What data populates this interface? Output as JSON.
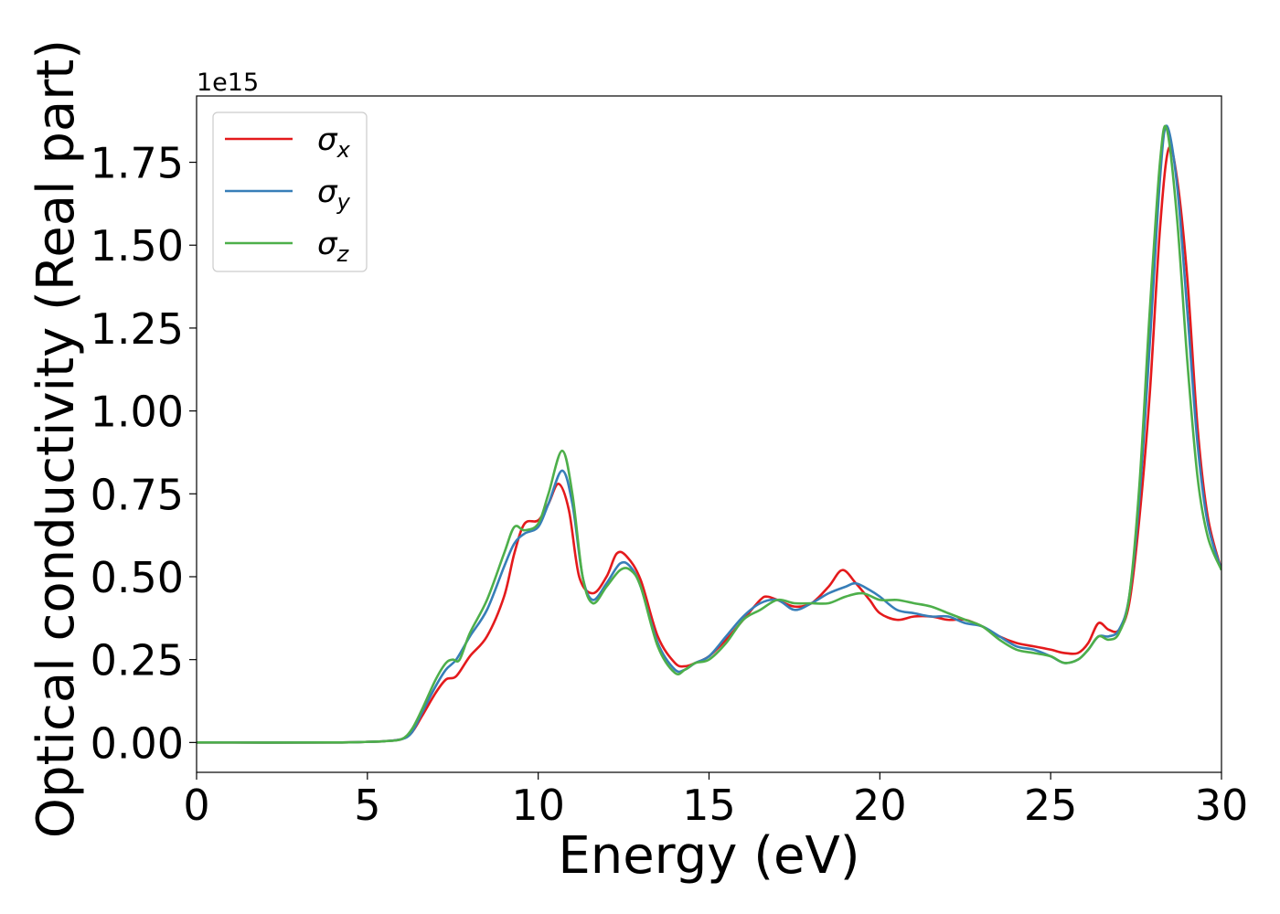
{
  "chart_data": {
    "type": "line",
    "xlabel": "Energy (eV)",
    "ylabel": "Optical conductivity (Real part)",
    "y_offset_label": "1e15",
    "xlim": [
      0,
      30
    ],
    "ylim": [
      -0.09,
      1.95
    ],
    "xticks": [
      0,
      5,
      10,
      15,
      20,
      25,
      30
    ],
    "xtick_labels": [
      "0",
      "5",
      "10",
      "15",
      "20",
      "25",
      "30"
    ],
    "yticks": [
      0.0,
      0.25,
      0.5,
      0.75,
      1.0,
      1.25,
      1.5,
      1.75
    ],
    "ytick_labels": [
      "0.00",
      "0.25",
      "0.50",
      "0.75",
      "1.00",
      "1.25",
      "1.50",
      "1.75"
    ],
    "grid": false,
    "legend_position": "top-left",
    "series": [
      {
        "name": "σ_x",
        "symbol": "σ",
        "subscript": "x",
        "color": "#e41a1c",
        "x": [
          0,
          4,
          5,
          5.5,
          6,
          6.3,
          6.6,
          7,
          7.3,
          7.6,
          8,
          8.5,
          9,
          9.3,
          9.6,
          10,
          10.3,
          10.6,
          10.9,
          11.2,
          11.6,
          12,
          12.3,
          12.6,
          13,
          13.5,
          14,
          14.3,
          14.6,
          15,
          15.5,
          16,
          16.5,
          16.7,
          17,
          17.5,
          18,
          18.5,
          18.9,
          19.3,
          19.7,
          20,
          20.5,
          21,
          21.5,
          22,
          22.5,
          23,
          23.5,
          24,
          24.5,
          25,
          25.4,
          25.8,
          26.1,
          26.4,
          26.7,
          27,
          27.3,
          27.6,
          27.9,
          28.2,
          28.45,
          28.7,
          29,
          29.3,
          29.6,
          30
        ],
        "values": [
          0.0,
          0.0,
          0.002,
          0.004,
          0.01,
          0.03,
          0.08,
          0.15,
          0.19,
          0.2,
          0.26,
          0.32,
          0.44,
          0.57,
          0.66,
          0.67,
          0.72,
          0.78,
          0.7,
          0.5,
          0.45,
          0.5,
          0.57,
          0.56,
          0.49,
          0.32,
          0.24,
          0.23,
          0.24,
          0.26,
          0.31,
          0.37,
          0.43,
          0.44,
          0.43,
          0.41,
          0.42,
          0.47,
          0.52,
          0.48,
          0.43,
          0.39,
          0.37,
          0.38,
          0.38,
          0.37,
          0.37,
          0.35,
          0.32,
          0.3,
          0.29,
          0.28,
          0.27,
          0.27,
          0.3,
          0.36,
          0.34,
          0.34,
          0.42,
          0.68,
          1.05,
          1.55,
          1.79,
          1.7,
          1.4,
          0.95,
          0.68,
          0.52
        ]
      },
      {
        "name": "σ_y",
        "symbol": "σ",
        "subscript": "y",
        "color": "#377eb8",
        "x": [
          0,
          4,
          5,
          5.5,
          6,
          6.3,
          6.6,
          7,
          7.3,
          7.6,
          8,
          8.5,
          9,
          9.3,
          9.6,
          10,
          10.3,
          10.7,
          11,
          11.3,
          11.6,
          12,
          12.4,
          12.7,
          13,
          13.5,
          14,
          14.3,
          14.6,
          15,
          15.5,
          16,
          16.5,
          17,
          17.5,
          18,
          18.5,
          19,
          19.3,
          19.7,
          20,
          20.5,
          21,
          21.5,
          22,
          22.5,
          23,
          23.5,
          24,
          24.5,
          25,
          25.4,
          25.8,
          26.1,
          26.4,
          26.7,
          27,
          27.3,
          27.6,
          27.9,
          28.2,
          28.4,
          28.7,
          29,
          29.3,
          29.6,
          30
        ],
        "values": [
          0.0,
          0.0,
          0.002,
          0.004,
          0.01,
          0.03,
          0.09,
          0.17,
          0.22,
          0.25,
          0.32,
          0.4,
          0.53,
          0.6,
          0.63,
          0.65,
          0.72,
          0.82,
          0.72,
          0.5,
          0.43,
          0.48,
          0.54,
          0.53,
          0.47,
          0.3,
          0.22,
          0.22,
          0.24,
          0.26,
          0.32,
          0.38,
          0.42,
          0.43,
          0.4,
          0.42,
          0.45,
          0.47,
          0.48,
          0.46,
          0.44,
          0.4,
          0.39,
          0.38,
          0.38,
          0.36,
          0.35,
          0.32,
          0.29,
          0.28,
          0.26,
          0.24,
          0.25,
          0.28,
          0.32,
          0.32,
          0.34,
          0.44,
          0.74,
          1.2,
          1.7,
          1.86,
          1.68,
          1.3,
          0.9,
          0.66,
          0.52
        ]
      },
      {
        "name": "σ_z",
        "symbol": "σ",
        "subscript": "z",
        "color": "#4daf4a",
        "x": [
          0,
          4,
          5,
          5.5,
          6,
          6.3,
          6.6,
          7,
          7.3,
          7.5,
          7.7,
          8,
          8.5,
          9,
          9.3,
          9.6,
          10,
          10.3,
          10.7,
          11,
          11.3,
          11.6,
          12,
          12.4,
          12.7,
          13,
          13.5,
          14,
          14.3,
          14.6,
          15,
          15.5,
          16,
          16.5,
          17,
          17.5,
          18,
          18.5,
          19,
          19.5,
          20,
          20.5,
          21,
          21.5,
          22,
          22.5,
          23,
          23.5,
          24,
          24.5,
          25,
          25.4,
          25.8,
          26.1,
          26.4,
          26.7,
          27,
          27.3,
          27.6,
          27.9,
          28.2,
          28.4,
          28.7,
          29,
          29.3,
          29.6,
          30
        ],
        "values": [
          0.0,
          0.0,
          0.002,
          0.004,
          0.01,
          0.04,
          0.1,
          0.19,
          0.24,
          0.25,
          0.25,
          0.33,
          0.43,
          0.57,
          0.65,
          0.64,
          0.66,
          0.75,
          0.88,
          0.75,
          0.5,
          0.42,
          0.47,
          0.52,
          0.52,
          0.47,
          0.29,
          0.21,
          0.22,
          0.24,
          0.25,
          0.3,
          0.37,
          0.4,
          0.43,
          0.42,
          0.42,
          0.42,
          0.44,
          0.45,
          0.43,
          0.43,
          0.42,
          0.41,
          0.39,
          0.37,
          0.35,
          0.31,
          0.28,
          0.27,
          0.26,
          0.24,
          0.25,
          0.28,
          0.32,
          0.31,
          0.33,
          0.44,
          0.78,
          1.3,
          1.75,
          1.85,
          1.58,
          1.15,
          0.8,
          0.62,
          0.52
        ]
      }
    ]
  }
}
